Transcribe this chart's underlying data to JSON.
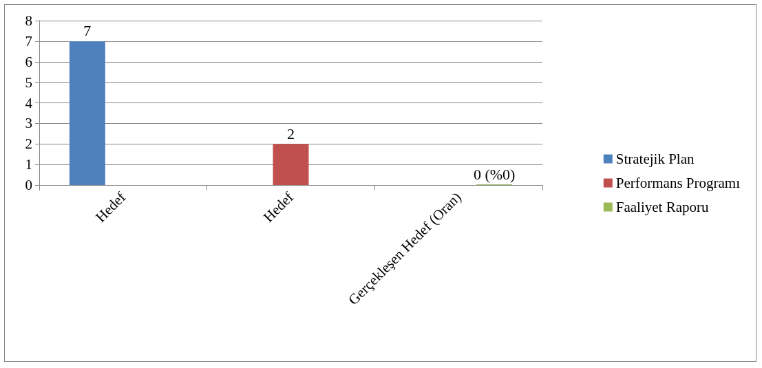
{
  "chart_data": {
    "type": "bar",
    "categories": [
      "Hedef",
      "Hedef",
      "Gerçekleşen Hedef (Oran)"
    ],
    "series": [
      {
        "name": "Stratejik Plan",
        "color": "#4f81bd",
        "values": [
          7,
          null,
          null
        ],
        "value_labels": [
          "7",
          null,
          null
        ]
      },
      {
        "name": "Performans Programı",
        "color": "#c0504d",
        "values": [
          null,
          2,
          null
        ],
        "value_labels": [
          null,
          "2",
          null
        ]
      },
      {
        "name": "Faaliyet Raporu",
        "color": "#9bbb59",
        "values": [
          null,
          null,
          0
        ],
        "value_labels": [
          null,
          null,
          "0 (%0)"
        ]
      }
    ],
    "ylim": [
      0,
      8
    ],
    "yticks": [
      0,
      1,
      2,
      3,
      4,
      5,
      6,
      7,
      8
    ],
    "grid": "y",
    "legend": "right"
  }
}
